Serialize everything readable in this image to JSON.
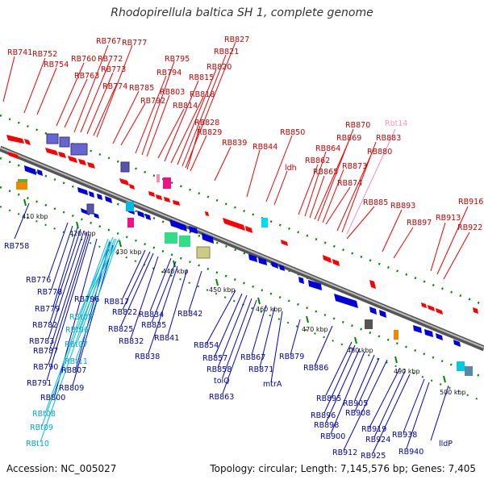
{
  "title": "Rhodopirellula baltica SH 1, complete genome",
  "footer": {
    "accession": "Accession: NC_005027",
    "info": "Topology: circular; Length: 7,145,576 bp; Genes: 7,405"
  },
  "colors": {
    "forward_gene": "#ff0000",
    "reverse_gene": "#0000dd",
    "trna_forward": "#ff88bb",
    "trna_reverse": "#00bbdd",
    "backbone": "#888888",
    "tick": "#008800",
    "upper_label": "#cc0000",
    "lower_label": "#0000aa",
    "trna_label": "#00aacc"
  },
  "scale_labels": [
    "410 kbp",
    "420 kbp",
    "430 kbp",
    "440 kbp",
    "450 kbp",
    "460 kbp",
    "470 kbp",
    "480 kbp",
    "490 kbp",
    "500 kbp"
  ],
  "upper_labels": [
    "RB741",
    "RB752",
    "RB754",
    "RB760",
    "RB763",
    "RB767",
    "RB772",
    "RB773",
    "RB774",
    "RB777",
    "RB785",
    "RB792",
    "RB794",
    "RB795",
    "RB803",
    "RB814",
    "RB815",
    "RB818",
    "RB820",
    "RB821",
    "RB827",
    "RB828",
    "RB829",
    "RB839",
    "RB844",
    "RB850",
    "ldh",
    "RB862",
    "RB864",
    "RB865",
    "RB869",
    "RB870",
    "RB873",
    "RB874",
    "RB880",
    "RB883",
    "Rbt14",
    "RB885",
    "RB893",
    "RB897",
    "RB913",
    "RB916",
    "RB922"
  ],
  "lower_labels": [
    "RB758",
    "RB776",
    "RB778",
    "RB779",
    "RB782",
    "RB783",
    "RB787",
    "RB790",
    "RB791",
    "RB800",
    "RB807",
    "RB809",
    "RB817",
    "RB822",
    "RB825",
    "RB832",
    "RB834",
    "RB835",
    "RB838",
    "RB841",
    "RB842",
    "RB854",
    "RB857",
    "RB858",
    "tolQ",
    "RB863",
    "RB867",
    "RB871",
    "mtrA",
    "RB879",
    "RB886",
    "RB895",
    "RB896",
    "RB898",
    "RB900",
    "RB905",
    "RB908",
    "RB912",
    "RB919",
    "RB924",
    "RB925",
    "RB938",
    "RB940",
    "lldP"
  ],
  "trna_labels": [
    "RBt05",
    "RBt06",
    "RBt07",
    "RBt11",
    "RBt08",
    "RBt09",
    "RBt10",
    "RB796"
  ]
}
